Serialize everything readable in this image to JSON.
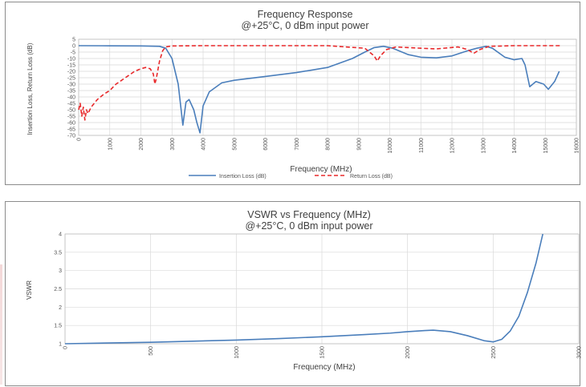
{
  "colors": {
    "insertion_loss": "#4a7ebb",
    "return_loss": "#e8282a",
    "vswr": "#4a7ebb"
  },
  "chart_data": [
    {
      "type": "line",
      "title": "Frequency Response",
      "subtitle": "@+25°C, 0 dBm input power",
      "xlabel": "Frequency (MHz)",
      "ylabel": "Insertion Loss, Return Loss (dB)",
      "xlim": [
        0,
        16000
      ],
      "ylim": [
        -70,
        5
      ],
      "x_ticks": [
        0,
        1000,
        2000,
        3000,
        4000,
        5000,
        6000,
        7000,
        8000,
        9000,
        10000,
        11000,
        12000,
        13000,
        14000,
        15000,
        16000
      ],
      "y_ticks": [
        5,
        0,
        -5,
        -10,
        -15,
        -20,
        -25,
        -30,
        -35,
        -40,
        -45,
        -50,
        -55,
        -60,
        -65,
        -70
      ],
      "grid": true,
      "legend_position": "bottom",
      "series": [
        {
          "name": "Insertion Loss (dB)",
          "style": "solid",
          "points": [
            [
              0,
              0
            ],
            [
              1000,
              -0.1
            ],
            [
              2000,
              -0.2
            ],
            [
              2600,
              -0.5
            ],
            [
              2800,
              -2
            ],
            [
              3000,
              -10
            ],
            [
              3200,
              -30
            ],
            [
              3350,
              -62
            ],
            [
              3450,
              -44
            ],
            [
              3550,
              -42
            ],
            [
              3700,
              -50
            ],
            [
              3800,
              -60
            ],
            [
              3900,
              -68
            ],
            [
              4000,
              -47
            ],
            [
              4200,
              -36
            ],
            [
              4600,
              -29
            ],
            [
              5000,
              -27
            ],
            [
              6000,
              -24
            ],
            [
              7000,
              -21
            ],
            [
              8000,
              -17
            ],
            [
              8800,
              -10
            ],
            [
              9200,
              -5
            ],
            [
              9500,
              -1.5
            ],
            [
              9800,
              -0.5
            ],
            [
              10100,
              -2
            ],
            [
              10600,
              -7
            ],
            [
              11000,
              -9
            ],
            [
              11500,
              -9.5
            ],
            [
              12000,
              -8
            ],
            [
              12500,
              -4
            ],
            [
              12800,
              -2
            ],
            [
              13100,
              -0.5
            ],
            [
              13300,
              -2
            ],
            [
              13700,
              -9
            ],
            [
              14000,
              -11
            ],
            [
              14250,
              -10
            ],
            [
              14350,
              -15
            ],
            [
              14500,
              -32
            ],
            [
              14700,
              -28
            ],
            [
              14950,
              -30
            ],
            [
              15100,
              -34
            ],
            [
              15300,
              -28
            ],
            [
              15450,
              -20
            ]
          ]
        },
        {
          "name": "Return Loss (dB)",
          "style": "dashed",
          "points": [
            [
              0,
              -50
            ],
            [
              50,
              -45
            ],
            [
              100,
              -55
            ],
            [
              150,
              -48
            ],
            [
              200,
              -58
            ],
            [
              250,
              -50
            ],
            [
              300,
              -53
            ],
            [
              400,
              -48
            ],
            [
              500,
              -45
            ],
            [
              600,
              -42
            ],
            [
              800,
              -38
            ],
            [
              1000,
              -35
            ],
            [
              1200,
              -30
            ],
            [
              1500,
              -25
            ],
            [
              1800,
              -20
            ],
            [
              2000,
              -18
            ],
            [
              2150,
              -17
            ],
            [
              2300,
              -18
            ],
            [
              2400,
              -22
            ],
            [
              2450,
              -30
            ],
            [
              2500,
              -25
            ],
            [
              2600,
              -12
            ],
            [
              2700,
              -4
            ],
            [
              2800,
              -1
            ],
            [
              3000,
              -0.2
            ],
            [
              4000,
              0
            ],
            [
              6000,
              0
            ],
            [
              8000,
              0
            ],
            [
              9200,
              -2
            ],
            [
              9500,
              -8
            ],
            [
              9600,
              -12
            ],
            [
              9700,
              -8
            ],
            [
              9900,
              -3
            ],
            [
              10200,
              -1
            ],
            [
              11000,
              -2
            ],
            [
              11500,
              -2.5
            ],
            [
              12200,
              -1
            ],
            [
              12500,
              -3
            ],
            [
              12700,
              -6
            ],
            [
              12900,
              -3
            ],
            [
              13200,
              -0.5
            ],
            [
              14000,
              0
            ],
            [
              15000,
              0
            ],
            [
              15500,
              0
            ]
          ]
        }
      ]
    },
    {
      "type": "line",
      "title": "VSWR vs Frequency (MHz)",
      "subtitle": "@+25°C, 0 dBm input power",
      "xlabel": "Frequency (MHz)",
      "ylabel": "VSWR",
      "xlim": [
        0,
        3000
      ],
      "ylim": [
        1,
        4
      ],
      "x_ticks": [
        0,
        500,
        1000,
        1500,
        2000,
        2500,
        3000
      ],
      "y_ticks": [
        4,
        3.5,
        3,
        2.5,
        2,
        1.5,
        1
      ],
      "y_tick_labels": [
        "4",
        "3.5",
        "3",
        "2.5",
        "2",
        "1.5",
        "1"
      ],
      "grid": true,
      "series": [
        {
          "style": "solid",
          "points": [
            [
              0,
              1.0
            ],
            [
              250,
              1.02
            ],
            [
              500,
              1.04
            ],
            [
              750,
              1.07
            ],
            [
              1000,
              1.1
            ],
            [
              1250,
              1.14
            ],
            [
              1500,
              1.19
            ],
            [
              1750,
              1.25
            ],
            [
              1900,
              1.29
            ],
            [
              2000,
              1.33
            ],
            [
              2100,
              1.36
            ],
            [
              2150,
              1.37
            ],
            [
              2250,
              1.33
            ],
            [
              2350,
              1.22
            ],
            [
              2450,
              1.08
            ],
            [
              2500,
              1.05
            ],
            [
              2550,
              1.12
            ],
            [
              2600,
              1.35
            ],
            [
              2650,
              1.75
            ],
            [
              2700,
              2.4
            ],
            [
              2750,
              3.2
            ],
            [
              2790,
              4.0
            ]
          ]
        }
      ]
    }
  ]
}
